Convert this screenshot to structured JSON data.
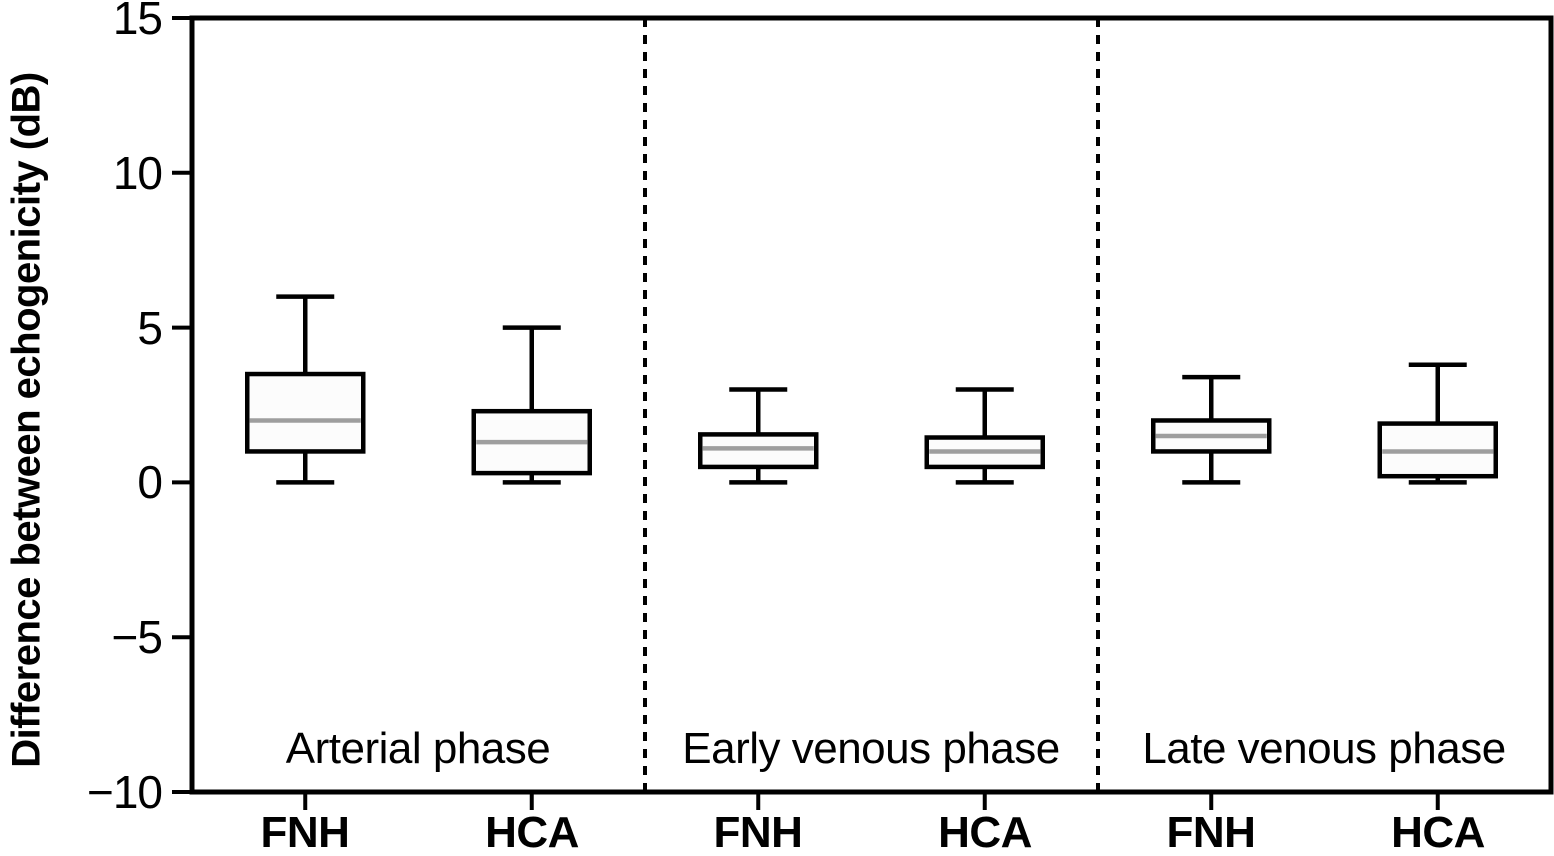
{
  "chart_data": {
    "type": "boxplot",
    "title": "",
    "xlabel": "",
    "ylabel": "Difference between echogenicity (dB)",
    "ylim": [
      -10,
      15
    ],
    "y_ticks": [
      15,
      10,
      5,
      0,
      -5,
      -10
    ],
    "y_tick_labels": [
      "15",
      "10",
      "5",
      "0",
      "−5",
      "−10"
    ],
    "grid": false,
    "legend": false,
    "dividers_between_groups": true,
    "colors": {
      "line": "#000000",
      "median": "#9e9e9e",
      "box_fill": "#fcfcfc",
      "background": "#ffffff"
    },
    "groups": [
      {
        "label": "Arterial phase",
        "boxes": [
          {
            "category": "FNH",
            "whisker_low": 0.0,
            "q1": 1.0,
            "median": 2.0,
            "q3": 3.5,
            "whisker_high": 6.0
          },
          {
            "category": "HCA",
            "whisker_low": 0.0,
            "q1": 0.3,
            "median": 1.3,
            "q3": 2.3,
            "whisker_high": 5.0
          }
        ]
      },
      {
        "label": "Early venous phase",
        "boxes": [
          {
            "category": "FNH",
            "whisker_low": 0.0,
            "q1": 0.5,
            "median": 1.1,
            "q3": 1.55,
            "whisker_high": 3.0
          },
          {
            "category": "HCA",
            "whisker_low": 0.0,
            "q1": 0.5,
            "median": 1.0,
            "q3": 1.45,
            "whisker_high": 3.0
          }
        ]
      },
      {
        "label": "Late venous phase",
        "boxes": [
          {
            "category": "FNH",
            "whisker_low": 0.0,
            "q1": 1.0,
            "median": 1.5,
            "q3": 2.0,
            "whisker_high": 3.4
          },
          {
            "category": "HCA",
            "whisker_low": 0.0,
            "q1": 0.2,
            "median": 1.0,
            "q3": 1.9,
            "whisker_high": 3.8
          }
        ]
      }
    ]
  }
}
